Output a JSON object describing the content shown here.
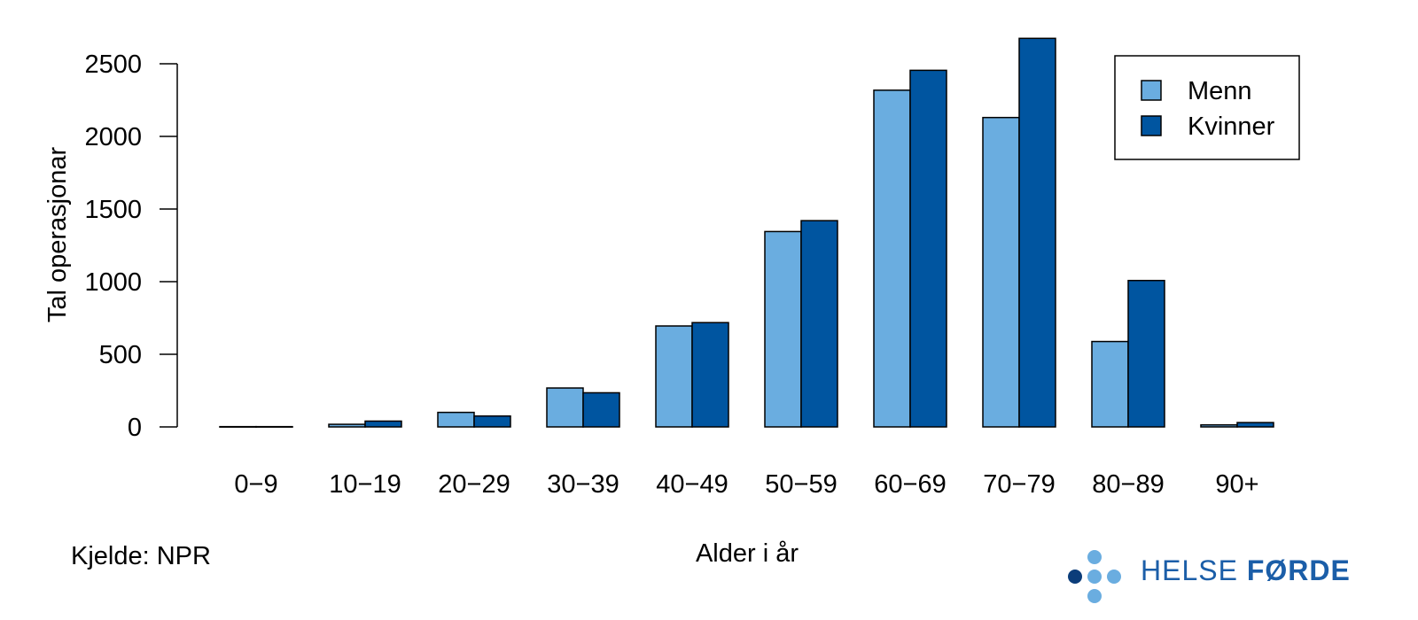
{
  "chart_data": {
    "type": "bar",
    "categories": [
      "0−9",
      "10−19",
      "20−29",
      "30−39",
      "40−49",
      "50−59",
      "60−69",
      "70−79",
      "80−89",
      "90+"
    ],
    "series": [
      {
        "name": "Menn",
        "color": "#6aade0",
        "values": [
          2,
          18,
          100,
          268,
          695,
          1345,
          2318,
          2130,
          588,
          14
        ]
      },
      {
        "name": "Kvinner",
        "color": "#0055a0",
        "values": [
          2,
          40,
          75,
          235,
          718,
          1420,
          2455,
          2675,
          1008,
          30
        ]
      }
    ],
    "xlabel": "Alder i år",
    "ylabel": "Tal operasjonar",
    "ylim": [
      0,
      2675
    ],
    "yticks": [
      0,
      500,
      1000,
      1500,
      2000,
      2500
    ],
    "legend": "top-right",
    "grid": false
  },
  "footer": {
    "source": "Kjelde: NPR",
    "logo": {
      "word1": "HELSE",
      "word2": "FØRDE",
      "color": "#1b5ea8",
      "dot_light": "#6aade0",
      "dot_dark": "#0b3d7a"
    }
  }
}
